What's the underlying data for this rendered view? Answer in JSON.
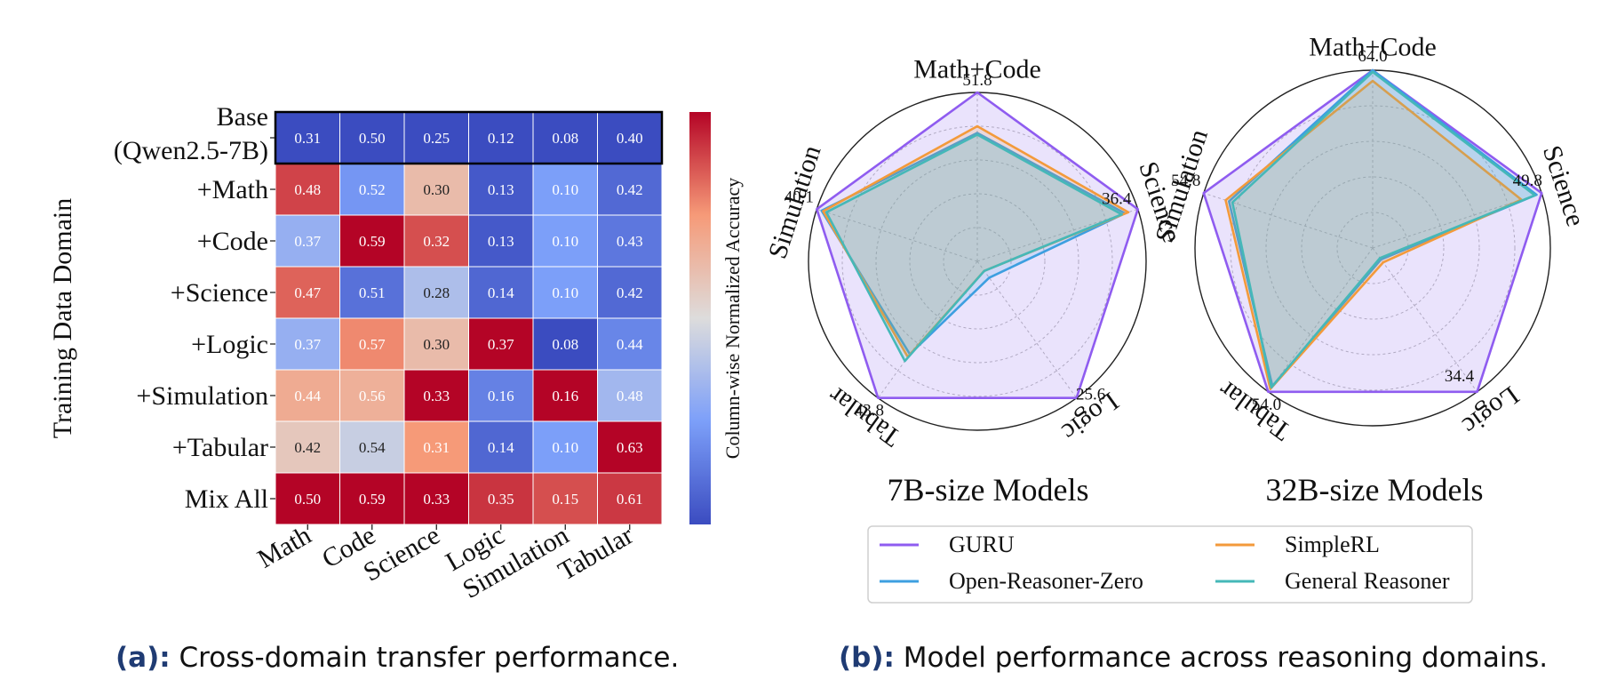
{
  "chart_data": [
    {
      "type": "heatmap",
      "ylabel": "Training Data Domain",
      "colorbar_label": "Column-wise Normalized Accuracy",
      "colormap": "coolwarm",
      "rows": [
        "Base\n(Qwen2.5-7B)",
        "+Math",
        "+Code",
        "+Science",
        "+Logic",
        "+Simulation",
        "+Tabular",
        "Mix All"
      ],
      "columns": [
        "Math",
        "Code",
        "Science",
        "Logic",
        "Simulation",
        "Tabular"
      ],
      "values": [
        [
          0.31,
          0.5,
          0.25,
          0.12,
          0.08,
          0.4
        ],
        [
          0.48,
          0.52,
          0.3,
          0.13,
          0.1,
          0.42
        ],
        [
          0.37,
          0.59,
          0.32,
          0.13,
          0.1,
          0.43
        ],
        [
          0.47,
          0.51,
          0.28,
          0.14,
          0.1,
          0.42
        ],
        [
          0.37,
          0.57,
          0.3,
          0.37,
          0.08,
          0.44
        ],
        [
          0.44,
          0.56,
          0.33,
          0.16,
          0.16,
          0.48
        ],
        [
          0.42,
          0.54,
          0.31,
          0.14,
          0.1,
          0.63
        ],
        [
          0.5,
          0.59,
          0.33,
          0.35,
          0.15,
          0.61
        ]
      ],
      "value_labels": [
        [
          "0.31",
          "0.50",
          "0.25",
          "0.12",
          "0.08",
          "0.40"
        ],
        [
          "0.48",
          "0.52",
          "0.30",
          "0.13",
          "0.10",
          "0.42"
        ],
        [
          "0.37",
          "0.59",
          "0.32",
          "0.13",
          "0.10",
          "0.43"
        ],
        [
          "0.47",
          "0.51",
          "0.28",
          "0.14",
          "0.10",
          "0.42"
        ],
        [
          "0.37",
          "0.57",
          "0.30",
          "0.37",
          "0.08",
          "0.44"
        ],
        [
          "0.44",
          "0.56",
          "0.33",
          "0.16",
          "0.16",
          "0.48"
        ],
        [
          "0.42",
          "0.54",
          "0.31",
          "0.14",
          "0.10",
          "0.63"
        ],
        [
          "0.50",
          "0.59",
          "0.33",
          "0.35",
          "0.15",
          "0.61"
        ]
      ],
      "highlighted_row": 0,
      "caption_tag": "(a):",
      "caption_text": " Cross-domain transfer performance."
    },
    {
      "type": "radar",
      "title": "7B-size Models",
      "axes": [
        "Math+Code",
        "Science",
        "Logic",
        "Tabular",
        "Simulation"
      ],
      "max_labels": [
        "51.8",
        "36.4",
        "25.6",
        "43.8",
        "40.1"
      ],
      "max_values": [
        51.8,
        36.4,
        25.6,
        43.8,
        40.1
      ],
      "series": [
        {
          "name": "GURU",
          "values": [
            1.0,
            1.0,
            1.0,
            1.0,
            1.0
          ]
        },
        {
          "name": "Open-Reasoner-Zero",
          "values": [
            0.76,
            0.92,
            0.12,
            0.68,
            0.97
          ]
        },
        {
          "name": "SimpleRL",
          "values": [
            0.8,
            0.94,
            0.07,
            0.7,
            0.96
          ]
        },
        {
          "name": "General Reasoner",
          "values": [
            0.75,
            0.9,
            0.07,
            0.73,
            0.94
          ]
        }
      ]
    },
    {
      "type": "radar",
      "title": "32B-size Models",
      "axes": [
        "Math+Code",
        "Science",
        "Logic",
        "Tabular",
        "Simulation"
      ],
      "max_labels": [
        "64.0",
        "49.8",
        "34.4",
        "54.0",
        "54.8"
      ],
      "max_values": [
        64.0,
        49.8,
        34.4,
        54.0,
        54.8
      ],
      "series": [
        {
          "name": "GURU",
          "values": [
            1.0,
            1.0,
            1.0,
            1.0,
            1.0
          ]
        },
        {
          "name": "Open-Reasoner-Zero",
          "values": [
            1.0,
            0.97,
            0.08,
            0.96,
            0.85
          ]
        },
        {
          "name": "SimpleRL",
          "values": [
            0.94,
            0.88,
            0.1,
            0.98,
            0.87
          ]
        },
        {
          "name": "General Reasoner",
          "values": [
            0.99,
            0.96,
            0.07,
            0.97,
            0.83
          ]
        }
      ],
      "caption_tag": "(b):",
      "caption_text": " Model performance across reasoning domains."
    }
  ],
  "legend": {
    "items": [
      {
        "name": "GURU",
        "color": "#8f5cf0"
      },
      {
        "name": "SimpleRL",
        "color": "#f39a3b"
      },
      {
        "name": "Open-Reasoner-Zero",
        "color": "#3d9fe0"
      },
      {
        "name": "General Reasoner",
        "color": "#45b8b8"
      }
    ]
  },
  "colors": {
    "guru_fill": "#b49af5",
    "grid": "#b0b0b0",
    "cell_text": "#ffffff",
    "cell_text_light": "#222222"
  }
}
